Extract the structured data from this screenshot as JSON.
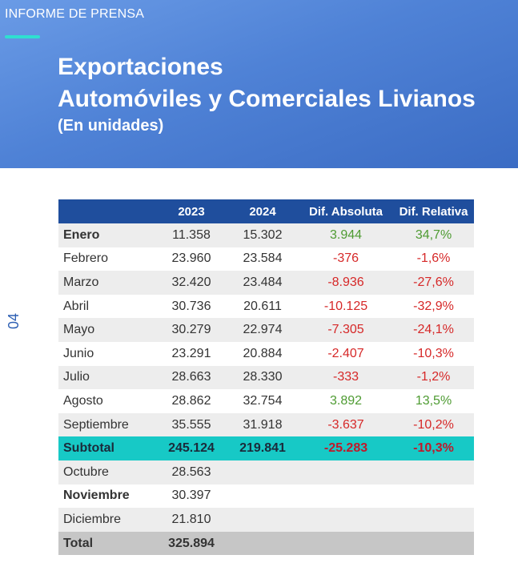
{
  "header": {
    "kicker": "INFORME DE PRENSA",
    "title_line1": "Exportaciones",
    "title_line2": "Automóviles y Comerciales Livianos",
    "subtitle": "(En unidades)"
  },
  "page_number": "04",
  "table": {
    "columns": [
      "",
      "2023",
      "2024",
      "Dif. Absoluta",
      "Dif. Relativa"
    ],
    "rows": [
      {
        "mes": "Enero",
        "y2023": "11.358",
        "y2024": "15.302",
        "abs": "3.944",
        "rel": "34,7%"
      },
      {
        "mes": "Febrero",
        "y2023": "23.960",
        "y2024": "23.584",
        "abs": "-376",
        "rel": "-1,6%"
      },
      {
        "mes": "Marzo",
        "y2023": "32.420",
        "y2024": "23.484",
        "abs": "-8.936",
        "rel": "-27,6%"
      },
      {
        "mes": "Abril",
        "y2023": "30.736",
        "y2024": "20.611",
        "abs": "-10.125",
        "rel": "-32,9%"
      },
      {
        "mes": "Mayo",
        "y2023": "30.279",
        "y2024": "22.974",
        "abs": "-7.305",
        "rel": "-24,1%"
      },
      {
        "mes": "Junio",
        "y2023": "23.291",
        "y2024": "20.884",
        "abs": "-2.407",
        "rel": "-10,3%"
      },
      {
        "mes": "Julio",
        "y2023": "28.663",
        "y2024": "28.330",
        "abs": "-333",
        "rel": "-1,2%"
      },
      {
        "mes": "Agosto",
        "y2023": "28.862",
        "y2024": "32.754",
        "abs": "3.892",
        "rel": "13,5%"
      },
      {
        "mes": "Septiembre",
        "y2023": "35.555",
        "y2024": "31.918",
        "abs": "-3.637",
        "rel": "-10,2%"
      }
    ],
    "subtotal": {
      "mes": "Subtotal",
      "y2023": "245.124",
      "y2024": "219.841",
      "abs": "-25.283",
      "rel": "-10,3%"
    },
    "rest": [
      {
        "mes": "Octubre",
        "y2023": "28.563"
      },
      {
        "mes": "Noviembre",
        "y2023": "30.397"
      },
      {
        "mes": "Diciembre",
        "y2023": "21.810"
      }
    ],
    "total": {
      "mes": "Total",
      "y2023": "325.894"
    }
  },
  "colors": {
    "header_blue": "#4f82d6",
    "table_header": "#1f4e9d",
    "subtotal": "#17c9c6",
    "positive": "#4e9b32",
    "negative": "#d62828"
  }
}
